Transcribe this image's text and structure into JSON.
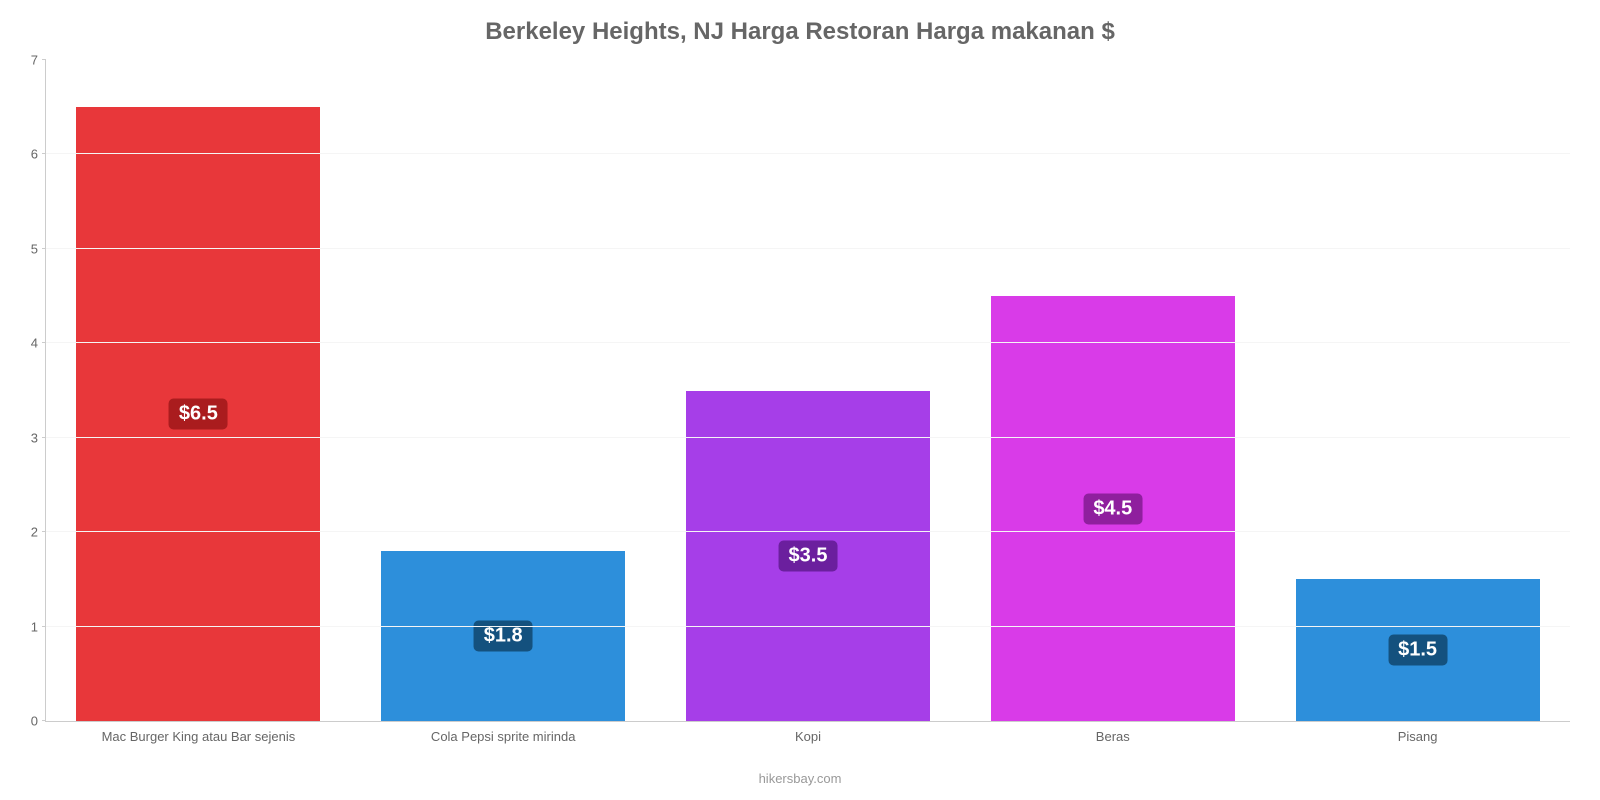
{
  "chart": {
    "type": "bar",
    "title": "Berkeley Heights, NJ Harga Restoran Harga makanan $",
    "title_fontsize": 24,
    "title_color": "#666666",
    "background_color": "#ffffff",
    "grid_color": "#f5f5f5",
    "axis_color": "#cccccc",
    "tick_label_color": "#666666",
    "tick_fontsize": 13,
    "ylim": [
      0,
      7
    ],
    "ytick_step": 1,
    "bar_width_pct": 80,
    "categories": [
      "Mac Burger King atau Bar sejenis",
      "Cola Pepsi sprite mirinda",
      "Kopi",
      "Beras",
      "Pisang"
    ],
    "values": [
      6.5,
      1.8,
      3.5,
      4.5,
      1.5
    ],
    "value_labels": [
      "$6.5",
      "$1.8",
      "$3.5",
      "$4.5",
      "$1.5"
    ],
    "bar_colors": [
      "#e8373a",
      "#2d8fdb",
      "#a63ee8",
      "#d93be8",
      "#2d8fdb"
    ],
    "badge_colors": [
      "#aa1c1e",
      "#14517e",
      "#6b1f9e",
      "#8f1f9e",
      "#14517e"
    ],
    "badge_fontsize": 20,
    "badge_text_color": "#ffffff",
    "footer": "hikersbay.com",
    "footer_color": "#999999"
  }
}
